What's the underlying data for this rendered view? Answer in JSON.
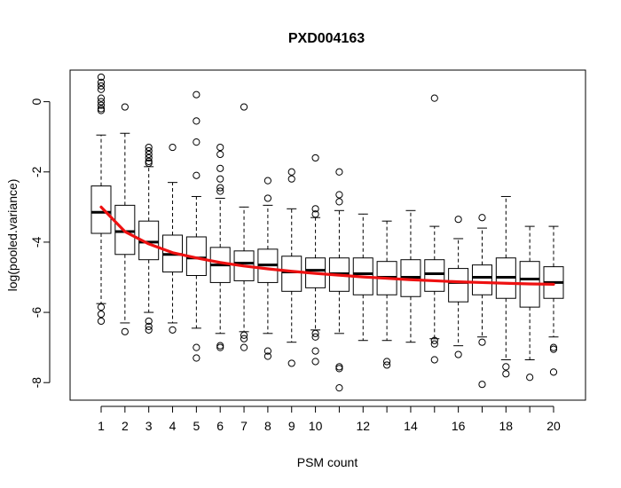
{
  "chart_data": {
    "type": "boxplot",
    "title": "PXD004163",
    "xlabel": "PSM count",
    "ylabel": "log(pooled.variance)",
    "ylim": [
      -8.5,
      0.9
    ],
    "y_ticks": [
      0,
      -2,
      -4,
      -6,
      -8
    ],
    "y_tick_labels": [
      "0",
      "-2",
      "-4",
      "-6",
      "-8"
    ],
    "categories": [
      1,
      2,
      3,
      4,
      5,
      6,
      7,
      8,
      9,
      10,
      11,
      12,
      13,
      14,
      15,
      16,
      17,
      18,
      19,
      20
    ],
    "x_tick_labels": [
      "1",
      "2",
      "3",
      "4",
      "5",
      "6",
      "7",
      "8",
      "9",
      "10",
      "",
      "12",
      "",
      "14",
      "",
      "16",
      "",
      "18",
      "",
      "20"
    ],
    "boxes": [
      {
        "q1": -3.75,
        "median": -3.15,
        "q3": -2.4,
        "whisker_low": -5.75,
        "whisker_high": -0.95,
        "outliers": [
          0.7,
          0.55,
          0.45,
          0.35,
          0.1,
          0.0,
          -0.1,
          -0.2,
          -0.25,
          -5.85,
          -6.05,
          -6.25
        ]
      },
      {
        "q1": -4.35,
        "median": -3.7,
        "q3": -2.95,
        "whisker_low": -6.3,
        "whisker_high": -0.9,
        "outliers": [
          -0.15,
          -6.55
        ]
      },
      {
        "q1": -4.5,
        "median": -4.0,
        "q3": -3.4,
        "whisker_low": -6.0,
        "whisker_high": -1.85,
        "outliers": [
          -1.3,
          -1.4,
          -1.5,
          -1.6,
          -1.7,
          -1.75,
          -6.25,
          -6.4,
          -6.5
        ]
      },
      {
        "q1": -4.85,
        "median": -4.35,
        "q3": -3.8,
        "whisker_low": -6.3,
        "whisker_high": -2.3,
        "outliers": [
          -1.3,
          -6.5
        ]
      },
      {
        "q1": -4.95,
        "median": -4.45,
        "q3": -3.85,
        "whisker_low": -6.45,
        "whisker_high": -2.7,
        "outliers": [
          0.2,
          -0.55,
          -1.15,
          -2.1,
          -7.0,
          -7.3
        ]
      },
      {
        "q1": -5.15,
        "median": -4.65,
        "q3": -4.15,
        "whisker_low": -6.6,
        "whisker_high": -2.75,
        "outliers": [
          -1.3,
          -1.5,
          -1.9,
          -2.2,
          -2.45,
          -2.55,
          -6.95,
          -7.0
        ]
      },
      {
        "q1": -5.1,
        "median": -4.6,
        "q3": -4.25,
        "whisker_low": -6.55,
        "whisker_high": -3.0,
        "outliers": [
          -0.15,
          -6.65,
          -6.75,
          -7.0
        ]
      },
      {
        "q1": -5.15,
        "median": -4.65,
        "q3": -4.2,
        "whisker_low": -6.6,
        "whisker_high": -2.95,
        "outliers": [
          -2.25,
          -2.75,
          -7.1,
          -7.25
        ]
      },
      {
        "q1": -5.4,
        "median": -4.85,
        "q3": -4.4,
        "whisker_low": -6.85,
        "whisker_high": -3.05,
        "outliers": [
          -2.0,
          -2.2,
          -7.45
        ]
      },
      {
        "q1": -5.3,
        "median": -4.8,
        "q3": -4.45,
        "whisker_low": -6.5,
        "whisker_high": -3.3,
        "outliers": [
          -1.6,
          -3.05,
          -3.2,
          -6.6,
          -6.7,
          -7.1,
          -7.4
        ]
      },
      {
        "q1": -5.4,
        "median": -4.9,
        "q3": -4.45,
        "whisker_low": -6.6,
        "whisker_high": -3.1,
        "outliers": [
          -2.0,
          -2.65,
          -2.85,
          -7.55,
          -7.6,
          -8.15
        ]
      },
      {
        "q1": -5.5,
        "median": -4.9,
        "q3": -4.45,
        "whisker_low": -6.8,
        "whisker_high": -3.2,
        "outliers": []
      },
      {
        "q1": -5.5,
        "median": -5.0,
        "q3": -4.55,
        "whisker_low": -6.8,
        "whisker_high": -3.4,
        "outliers": [
          -7.4,
          -7.5
        ]
      },
      {
        "q1": -5.55,
        "median": -5.0,
        "q3": -4.5,
        "whisker_low": -6.85,
        "whisker_high": -3.1,
        "outliers": []
      },
      {
        "q1": -5.4,
        "median": -4.9,
        "q3": -4.5,
        "whisker_low": -6.75,
        "whisker_high": -3.55,
        "outliers": [
          0.1,
          -6.8,
          -6.9,
          -7.35
        ]
      },
      {
        "q1": -5.7,
        "median": -5.15,
        "q3": -4.75,
        "whisker_low": -6.95,
        "whisker_high": -3.9,
        "outliers": [
          -3.35,
          -7.2
        ]
      },
      {
        "q1": -5.5,
        "median": -5.0,
        "q3": -4.65,
        "whisker_low": -6.7,
        "whisker_high": -3.6,
        "outliers": [
          -3.3,
          -6.85,
          -8.05
        ]
      },
      {
        "q1": -5.6,
        "median": -5.0,
        "q3": -4.45,
        "whisker_low": -7.35,
        "whisker_high": -2.7,
        "outliers": [
          -7.55,
          -7.75
        ]
      },
      {
        "q1": -5.85,
        "median": -5.05,
        "q3": -4.55,
        "whisker_low": -7.35,
        "whisker_high": -3.55,
        "outliers": [
          -7.85
        ]
      },
      {
        "q1": -5.6,
        "median": -5.15,
        "q3": -4.7,
        "whisker_low": -6.7,
        "whisker_high": -3.55,
        "outliers": [
          -7.0,
          -7.05,
          -7.7
        ]
      }
    ],
    "trend_line": {
      "color": "#ee1111",
      "x": [
        1,
        2,
        3,
        4,
        5,
        6,
        7,
        8,
        9,
        10,
        11,
        12,
        13,
        14,
        15,
        16,
        17,
        18,
        19,
        20
      ],
      "y": [
        -3.0,
        -3.7,
        -4.05,
        -4.3,
        -4.45,
        -4.58,
        -4.68,
        -4.76,
        -4.83,
        -4.89,
        -4.94,
        -4.99,
        -5.03,
        -5.07,
        -5.1,
        -5.13,
        -5.15,
        -5.17,
        -5.19,
        -5.2
      ]
    }
  }
}
